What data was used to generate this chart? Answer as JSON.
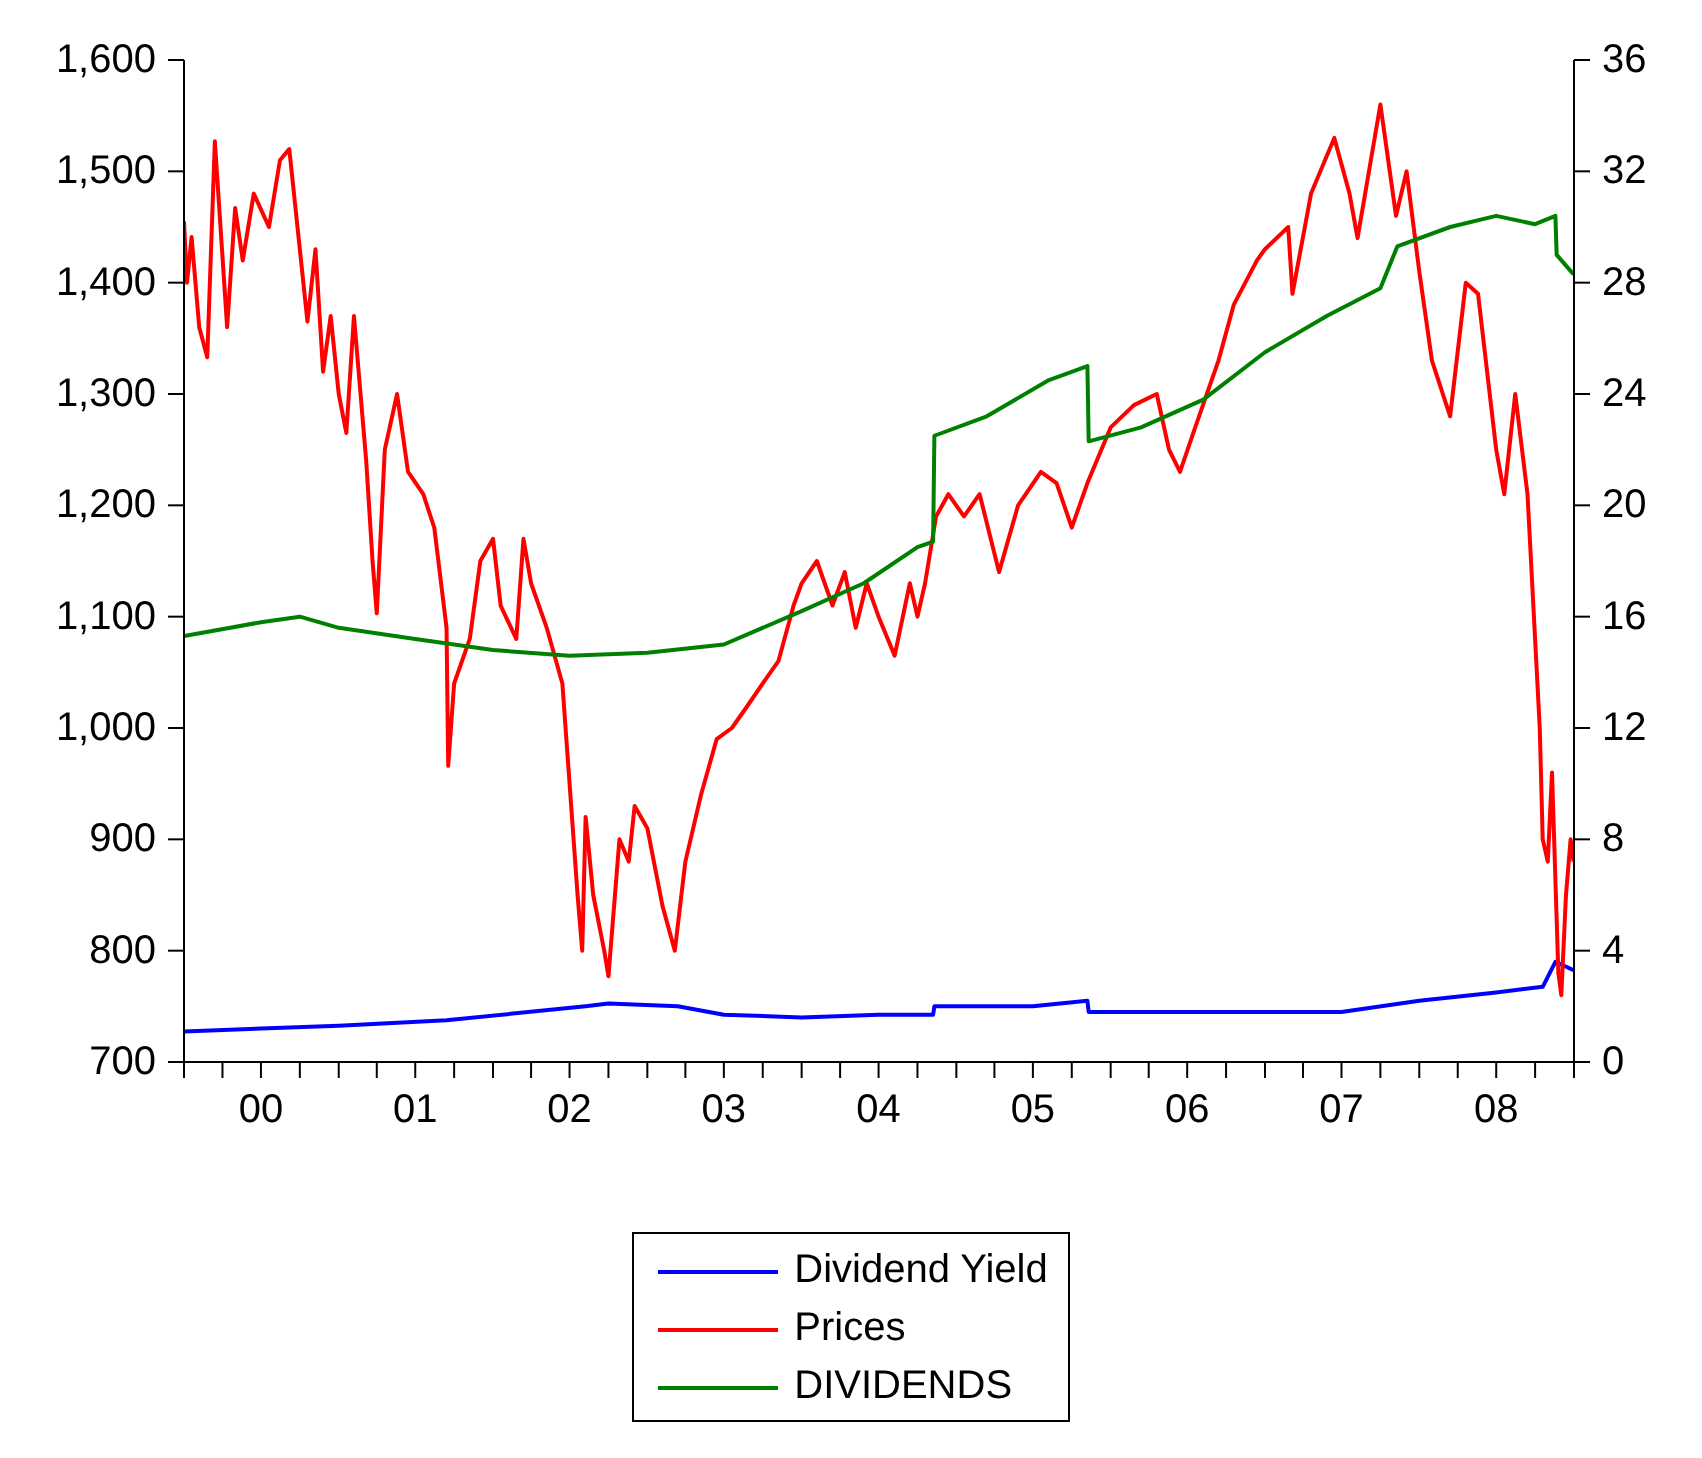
{
  "chart_data": {
    "type": "line",
    "legend": "bottom",
    "grid": false,
    "marker": "none",
    "line_style": "solid",
    "xlim": [
      "2000-01-01",
      "2009-01-01"
    ],
    "xticks": [
      {
        "value": "2000-01-01",
        "label": null
      },
      {
        "value": "2000-04-01",
        "label": null
      },
      {
        "value": "2000-07-01",
        "label": "00"
      },
      {
        "value": "2000-10-01",
        "label": null
      },
      {
        "value": "2001-01-01",
        "label": null
      },
      {
        "value": "2001-04-01",
        "label": null
      },
      {
        "value": "2001-07-01",
        "label": "01"
      },
      {
        "value": "2001-10-01",
        "label": null
      },
      {
        "value": "2002-01-01",
        "label": null
      },
      {
        "value": "2002-04-01",
        "label": null
      },
      {
        "value": "2002-07-01",
        "label": "02"
      },
      {
        "value": "2002-10-01",
        "label": null
      },
      {
        "value": "2003-01-01",
        "label": null
      },
      {
        "value": "2003-04-01",
        "label": null
      },
      {
        "value": "2003-07-01",
        "label": "03"
      },
      {
        "value": "2003-10-01",
        "label": null
      },
      {
        "value": "2004-01-01",
        "label": null
      },
      {
        "value": "2004-04-01",
        "label": null
      },
      {
        "value": "2004-07-01",
        "label": "04"
      },
      {
        "value": "2004-10-01",
        "label": null
      },
      {
        "value": "2005-01-01",
        "label": null
      },
      {
        "value": "2005-04-01",
        "label": null
      },
      {
        "value": "2005-07-01",
        "label": "05"
      },
      {
        "value": "2005-10-01",
        "label": null
      },
      {
        "value": "2006-01-01",
        "label": null
      },
      {
        "value": "2006-04-01",
        "label": null
      },
      {
        "value": "2006-07-01",
        "label": "06"
      },
      {
        "value": "2006-10-01",
        "label": null
      },
      {
        "value": "2007-01-01",
        "label": null
      },
      {
        "value": "2007-04-01",
        "label": null
      },
      {
        "value": "2007-07-01",
        "label": "07"
      },
      {
        "value": "2007-10-01",
        "label": null
      },
      {
        "value": "2008-01-01",
        "label": null
      },
      {
        "value": "2008-04-01",
        "label": null
      },
      {
        "value": "2008-07-01",
        "label": "08"
      },
      {
        "value": "2008-10-01",
        "label": null
      },
      {
        "value": "2009-01-01",
        "label": null
      }
    ],
    "ylim": [
      700,
      1600
    ],
    "yticks": [
      700,
      800,
      900,
      {
        "value": 1000,
        "label": "1,000"
      },
      {
        "value": 1100,
        "label": "1,100"
      },
      {
        "value": 1200,
        "label": "1,200"
      },
      {
        "value": 1300,
        "label": "1,300"
      },
      {
        "value": 1400,
        "label": "1,400"
      },
      {
        "value": 1500,
        "label": "1,500"
      },
      {
        "value": 1600,
        "label": "1,600"
      }
    ],
    "y2lim": [
      0,
      36
    ],
    "y2ticks": [
      0,
      4,
      8,
      12,
      16,
      20,
      24,
      28,
      32,
      36
    ],
    "series": [
      {
        "name": "Dividend Yield",
        "color": "#0000ff",
        "axis": "y2",
        "x": [
          "2000-01-01",
          "2001-01-01",
          "2001-09-13",
          "2002-08-08",
          "2002-10-01",
          "2003-03-14",
          "2003-07-01",
          "2004-01-01",
          "2004-07-01",
          "2004-11-07",
          "2004-11-10",
          "2005-07-01",
          "2005-11-07",
          "2005-11-10",
          "2006-07-01",
          "2007-07-01",
          "2008-01-01",
          "2008-07-01",
          "2008-10-19",
          "2008-11-18",
          "2008-12-31"
        ],
        "values": [
          1.1,
          1.3,
          1.5,
          2.0,
          2.1,
          2.0,
          1.7,
          1.6,
          1.7,
          1.7,
          2.0,
          2.0,
          2.2,
          1.8,
          1.8,
          1.8,
          2.2,
          2.5,
          2.7,
          3.6,
          3.3
        ]
      },
      {
        "name": "Prices",
        "color": "#ff0000",
        "axis": "y",
        "x": [
          "2000-01-01",
          "2000-01-08",
          "2000-01-19",
          "2000-02-06",
          "2000-02-25",
          "2000-03-14",
          "2000-04-12",
          "2000-05-01",
          "2000-05-19",
          "2000-06-14",
          "2000-07-20",
          "2000-08-15",
          "2000-09-06",
          "2000-10-01",
          "2000-10-19",
          "2000-11-07",
          "2000-11-25",
          "2000-12-13",
          "2001-01-01",
          "2001-01-19",
          "2001-02-06",
          "2001-03-07",
          "2001-03-22",
          "2001-04-01",
          "2001-04-20",
          "2001-05-19",
          "2001-06-14",
          "2001-07-20",
          "2001-08-15",
          "2001-09-13",
          "2001-09-17",
          "2001-10-01",
          "2001-11-07",
          "2001-12-02",
          "2002-01-01",
          "2002-01-19",
          "2002-02-25",
          "2002-03-14",
          "2002-04-01",
          "2002-05-08",
          "2002-06-14",
          "2002-07-20",
          "2002-07-31",
          "2002-08-08",
          "2002-08-26",
          "2002-09-21",
          "2002-10-01",
          "2002-10-27",
          "2002-11-18",
          "2002-12-02",
          "2003-01-01",
          "2003-02-06",
          "2003-03-07",
          "2003-04-01",
          "2003-05-08",
          "2003-06-14",
          "2003-07-20",
          "2003-08-26",
          "2003-10-01",
          "2003-11-07",
          "2003-12-13",
          "2004-01-01",
          "2004-02-06",
          "2004-03-14",
          "2004-04-12",
          "2004-05-08",
          "2004-06-03",
          "2004-07-01",
          "2004-08-08",
          "2004-09-13",
          "2004-10-01",
          "2004-10-19",
          "2004-11-14",
          "2004-12-13",
          "2005-01-19",
          "2005-02-25",
          "2005-04-12",
          "2005-05-27",
          "2005-07-20",
          "2005-08-26",
          "2005-10-01",
          "2005-11-07",
          "2006-01-01",
          "2006-02-25",
          "2006-04-20",
          "2006-05-19",
          "2006-06-14",
          "2006-07-20",
          "2006-09-13",
          "2006-10-19",
          "2006-12-13",
          "2007-01-01",
          "2007-02-25",
          "2007-03-07",
          "2007-04-20",
          "2007-06-14",
          "2007-07-20",
          "2007-08-08",
          "2007-10-01",
          "2007-11-07",
          "2007-12-02",
          "2008-01-01",
          "2008-01-31",
          "2008-03-14",
          "2008-04-20",
          "2008-05-19",
          "2008-07-01",
          "2008-07-20",
          "2008-08-15",
          "2008-09-13",
          "2008-10-12",
          "2008-10-19",
          "2008-10-31",
          "2008-11-10",
          "2008-11-25",
          "2008-12-02",
          "2008-12-13",
          "2008-12-24",
          "2008-12-31"
        ],
        "values": [
          1455,
          1400,
          1441,
          1360,
          1333,
          1527,
          1360,
          1467,
          1420,
          1480,
          1450,
          1510,
          1520,
          1430,
          1365,
          1430,
          1320,
          1370,
          1300,
          1265,
          1370,
          1240,
          1150,
          1103,
          1250,
          1300,
          1230,
          1210,
          1180,
          1090,
          966,
          1040,
          1080,
          1150,
          1170,
          1110,
          1080,
          1170,
          1130,
          1090,
          1040,
          850,
          800,
          920,
          850,
          800,
          777,
          900,
          880,
          930,
          910,
          840,
          800,
          880,
          940,
          990,
          1000,
          1020,
          1040,
          1060,
          1110,
          1130,
          1150,
          1110,
          1140,
          1090,
          1130,
          1100,
          1065,
          1130,
          1100,
          1130,
          1190,
          1210,
          1190,
          1210,
          1140,
          1200,
          1230,
          1220,
          1180,
          1220,
          1270,
          1290,
          1300,
          1250,
          1230,
          1270,
          1330,
          1380,
          1420,
          1430,
          1450,
          1390,
          1480,
          1530,
          1480,
          1440,
          1560,
          1460,
          1500,
          1410,
          1330,
          1280,
          1400,
          1390,
          1250,
          1210,
          1300,
          1210,
          1000,
          900,
          880,
          960,
          780,
          760,
          850,
          900,
          880
        ]
      },
      {
        "name": "DIVIDENDS",
        "color": "#008000",
        "axis": "y2",
        "x": [
          "2000-01-01",
          "2000-07-01",
          "2000-10-01",
          "2001-01-01",
          "2001-07-01",
          "2002-01-01",
          "2002-07-01",
          "2003-01-01",
          "2003-07-01",
          "2004-01-01",
          "2004-05-27",
          "2004-10-01",
          "2004-11-07",
          "2004-11-10",
          "2005-03-14",
          "2005-08-08",
          "2005-11-07",
          "2005-11-10",
          "2006-03-14",
          "2006-08-08",
          "2007-01-01",
          "2007-05-27",
          "2007-10-01",
          "2007-11-10",
          "2008-03-14",
          "2008-07-01",
          "2008-10-01",
          "2008-11-18",
          "2008-11-21",
          "2008-12-31"
        ],
        "values": [
          15.3,
          15.8,
          16.0,
          15.6,
          15.2,
          14.8,
          14.6,
          14.7,
          15.0,
          16.2,
          17.2,
          18.5,
          18.7,
          22.5,
          23.2,
          24.5,
          25.0,
          22.3,
          22.8,
          23.8,
          25.5,
          26.8,
          27.8,
          29.3,
          30.0,
          30.4,
          30.1,
          30.4,
          29.0,
          28.3
        ]
      }
    ]
  }
}
